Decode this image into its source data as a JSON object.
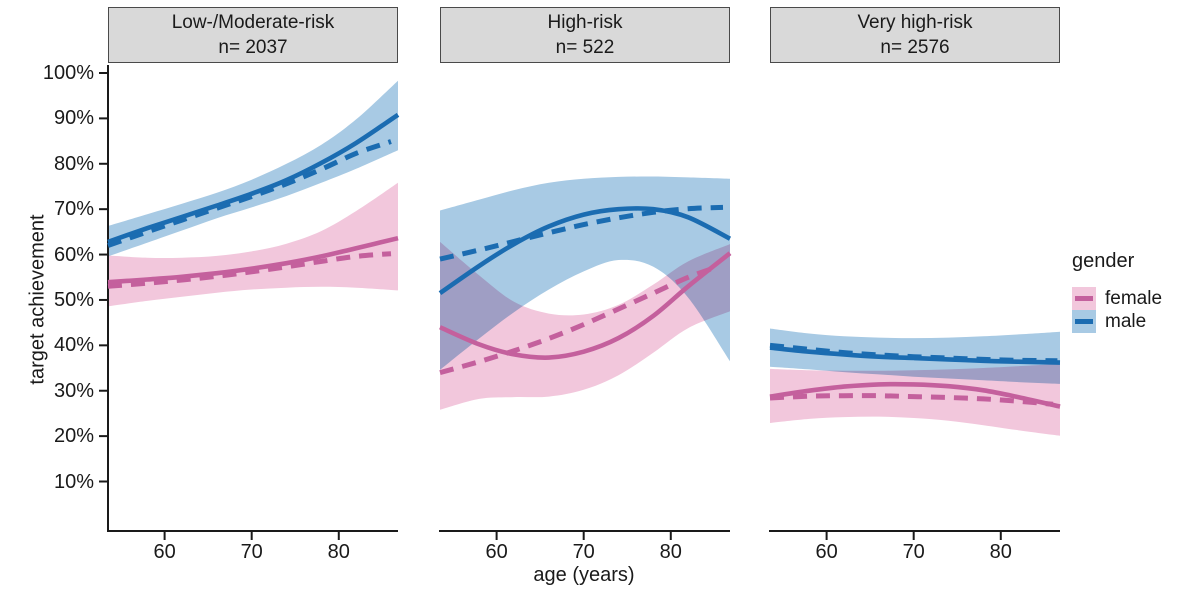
{
  "figure": {
    "kind": "faceted smoothed line chart with confidence ribbons"
  },
  "colors": {
    "female_line": "#c4609d",
    "female_fill": "#f2c7dc",
    "male_line": "#1b6cb1",
    "male_fill": "#a8cae4",
    "strip_fill": "#d9d9d9",
    "strip_border": "#4a4a4a",
    "axis": "#1a1a1a",
    "background": "#ffffff"
  },
  "legend": {
    "title": "gender",
    "position": "right",
    "items": [
      {
        "label": "female",
        "line": "#c4609d",
        "fill": "#f2c7dc"
      },
      {
        "label": "male",
        "line": "#1b6cb1",
        "fill": "#a8cae4"
      }
    ]
  },
  "chart_data": {
    "type": "line",
    "title": "",
    "xlabel": "age (years)",
    "ylabel": "target achievement",
    "x_ticks": [
      60,
      70,
      80
    ],
    "y_ticks": {
      "labels": [
        "100%",
        "90%",
        "80%",
        "70%",
        "60%",
        "50%",
        "40%",
        "30%",
        "20%",
        "10%"
      ],
      "values": [
        100,
        90,
        80,
        70,
        60,
        50,
        40,
        30,
        20,
        10
      ]
    },
    "x_range": [
      53.5,
      86.8
    ],
    "ylim_percent": [
      0,
      102
    ],
    "grid": false,
    "facets": [
      {
        "label": "Low-/Moderate-risk",
        "n_label": "n= 2037",
        "n": 2037,
        "ribbons": [
          {
            "gender": "female",
            "x": [
              53.5,
              58,
              62,
              66,
              70,
              74,
              78,
              82,
              86.8
            ],
            "upper": [
              59.8,
              59.3,
              59.3,
              59.7,
              60.7,
              62.4,
              65.2,
              69.6,
              75.8
            ],
            "lower": [
              48.6,
              49.8,
              50.7,
              51.6,
              52.3,
              52.7,
              52.9,
              52.7,
              52.1
            ]
          },
          {
            "gender": "male",
            "x": [
              53.5,
              58,
              62,
              66,
              70,
              74,
              78,
              82,
              86.8
            ],
            "upper": [
              66.3,
              68.9,
              71.2,
              73.6,
              76.5,
              80.0,
              84.2,
              89.8,
              98.3
            ],
            "lower": [
              59.6,
              62.6,
              65.3,
              68.0,
              70.4,
              72.9,
              75.8,
              78.9,
              83.0
            ]
          }
        ],
        "series": [
          {
            "gender": "female",
            "linetype": "solid",
            "x": [
              53.5,
              58,
              62,
              66,
              70,
              74,
              78,
              82,
              86.8
            ],
            "y": [
              53.9,
              54.5,
              55.1,
              55.9,
              56.9,
              58.1,
              59.6,
              61.4,
              63.6
            ]
          },
          {
            "gender": "female",
            "linetype": "dashed",
            "x": [
              53.5,
              58,
              62,
              66,
              70,
              74,
              78,
              82,
              86
            ],
            "y": [
              53.0,
              53.7,
              54.4,
              55.2,
              56.2,
              57.3,
              58.5,
              59.6,
              60.2
            ]
          },
          {
            "gender": "male",
            "linetype": "solid",
            "x": [
              53.5,
              58,
              62,
              66,
              70,
              74,
              78,
              82,
              86.8
            ],
            "y": [
              62.8,
              65.8,
              68.3,
              70.8,
              73.4,
              76.4,
              80.2,
              84.6,
              90.8
            ]
          },
          {
            "gender": "male",
            "linetype": "dashed",
            "x": [
              53.5,
              58,
              62,
              66,
              70,
              74,
              78,
              82,
              86
            ],
            "y": [
              62.0,
              65.0,
              67.6,
              70.2,
              72.8,
              75.6,
              78.8,
              82.3,
              84.9
            ]
          }
        ]
      },
      {
        "label": "High-risk",
        "n_label": "n= 522",
        "n": 522,
        "ribbons": [
          {
            "gender": "female",
            "x": [
              53.5,
              58,
              62,
              66,
              70,
              74,
              78,
              82,
              86.8
            ],
            "upper": [
              62.8,
              55.4,
              49.6,
              47.0,
              46.8,
              48.9,
              53.4,
              58.5,
              62.3
            ],
            "lower": [
              25.8,
              28.2,
              28.6,
              28.7,
              30.2,
              33.4,
              38.4,
              43.8,
              47.5
            ]
          },
          {
            "gender": "male",
            "x": [
              53.5,
              58,
              62,
              66,
              70,
              74,
              78,
              82,
              86.8
            ],
            "upper": [
              69.7,
              72.1,
              74.2,
              75.8,
              76.7,
              77.1,
              77.2,
              77.0,
              76.7
            ],
            "lower": [
              34.6,
              41.5,
              47.3,
              52.3,
              56.3,
              58.8,
              57.3,
              50.5,
              36.5
            ]
          }
        ],
        "series": [
          {
            "gender": "female",
            "linetype": "solid",
            "x": [
              53.5,
              58,
              62,
              66,
              70,
              74,
              78,
              82,
              86.8
            ],
            "y": [
              44.0,
              40.2,
              38.0,
              37.3,
              38.6,
              41.6,
              46.5,
              53.0,
              60.3
            ]
          },
          {
            "gender": "female",
            "linetype": "dashed",
            "x": [
              53.5,
              58,
              62,
              66,
              70,
              74,
              78,
              82,
              85.5
            ],
            "y": [
              34.0,
              36.4,
              38.8,
              41.5,
              44.6,
              48.0,
              51.5,
              55.0,
              57.4
            ]
          },
          {
            "gender": "male",
            "linetype": "solid",
            "x": [
              53.5,
              58,
              62,
              66,
              70,
              74,
              78,
              82,
              86.8
            ],
            "y": [
              51.5,
              57.5,
              62.3,
              66.2,
              68.8,
              70.0,
              70.0,
              68.2,
              63.5
            ]
          },
          {
            "gender": "male",
            "linetype": "dashed",
            "x": [
              53.5,
              58,
              62,
              66,
              70,
              74,
              78,
              82,
              86
            ],
            "y": [
              59.0,
              61.0,
              62.9,
              64.8,
              66.6,
              68.1,
              69.3,
              70.1,
              70.4
            ]
          }
        ]
      },
      {
        "label": "Very high-risk",
        "n_label": "n= 2576",
        "n": 2576,
        "ribbons": [
          {
            "gender": "female",
            "x": [
              53.5,
              58,
              62,
              66,
              70,
              74,
              78,
              82,
              86.8
            ],
            "upper": [
              34.8,
              34.5,
              34.4,
              34.4,
              34.5,
              34.7,
              35.0,
              35.4,
              35.9
            ],
            "lower": [
              22.9,
              23.8,
              24.2,
              24.3,
              24.0,
              23.4,
              22.4,
              21.3,
              20.1
            ]
          },
          {
            "gender": "male",
            "x": [
              53.5,
              58,
              62,
              66,
              70,
              74,
              78,
              82,
              86.8
            ],
            "upper": [
              43.7,
              42.6,
              42.0,
              41.7,
              41.6,
              41.7,
              42.0,
              42.4,
              43.0
            ],
            "lower": [
              35.3,
              34.7,
              34.1,
              33.6,
              33.1,
              32.7,
              32.3,
              31.9,
              31.5
            ]
          }
        ],
        "series": [
          {
            "gender": "female",
            "linetype": "solid",
            "x": [
              53.5,
              58,
              62,
              66,
              70,
              74,
              78,
              82,
              86.8
            ],
            "y": [
              28.7,
              30.0,
              30.9,
              31.4,
              31.4,
              31.0,
              30.1,
              28.6,
              26.5
            ]
          },
          {
            "gender": "female",
            "linetype": "dashed",
            "x": [
              53.5,
              58,
              62,
              66,
              70,
              74,
              78,
              82,
              86
            ],
            "y": [
              28.4,
              28.8,
              28.9,
              28.9,
              28.7,
              28.5,
              28.2,
              27.7,
              27.0
            ]
          },
          {
            "gender": "male",
            "linetype": "solid",
            "x": [
              53.5,
              58,
              62,
              66,
              70,
              74,
              78,
              82,
              86.8
            ],
            "y": [
              39.5,
              38.6,
              38.0,
              37.5,
              37.2,
              36.9,
              36.6,
              36.4,
              36.2
            ]
          },
          {
            "gender": "male",
            "linetype": "dashed",
            "x": [
              53.5,
              58,
              62,
              66,
              70,
              74,
              78,
              82,
              86.5
            ],
            "y": [
              40.0,
              39.1,
              38.4,
              37.9,
              37.5,
              37.2,
              36.9,
              36.7,
              36.6
            ]
          }
        ]
      }
    ]
  }
}
